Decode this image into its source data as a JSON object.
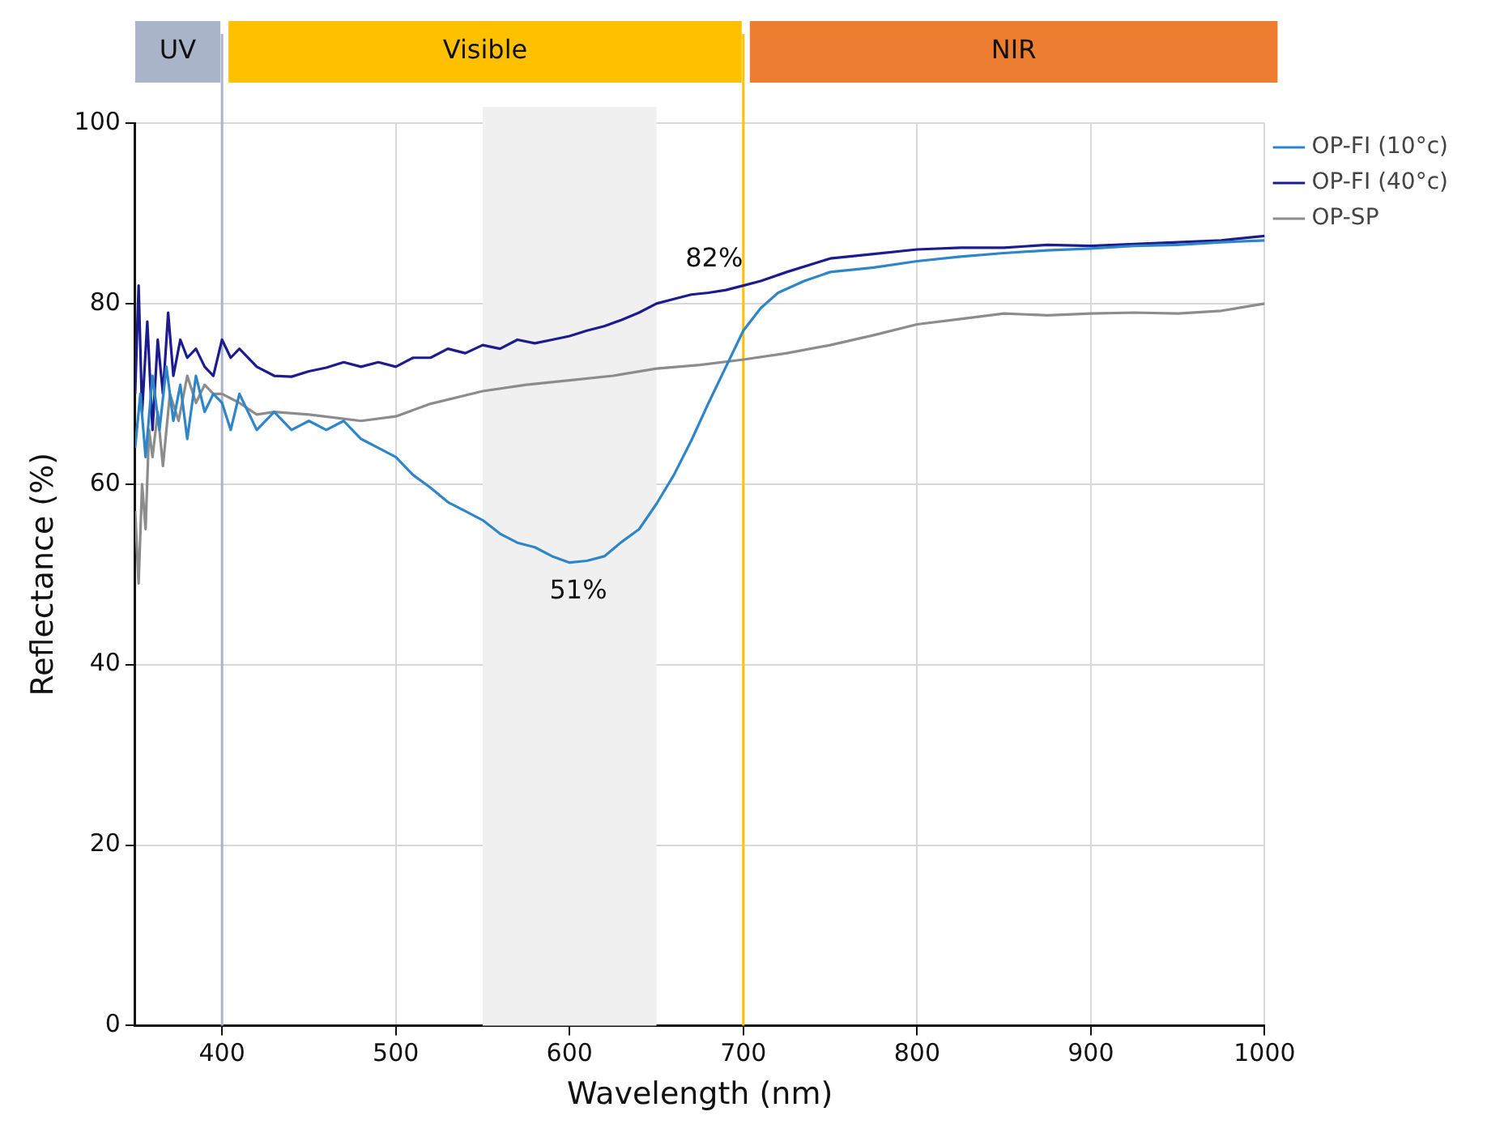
{
  "chart_data": {
    "type": "line",
    "xlabel": "Wavelength (nm)",
    "ylabel": "Reflectance (%)",
    "xlim": [
      350,
      1000
    ],
    "xticks": [
      400,
      500,
      600,
      700,
      800,
      900,
      1000
    ],
    "ylim": [
      0,
      100
    ],
    "yticks": [
      0,
      20,
      40,
      60,
      80,
      100
    ],
    "grid": true,
    "legend": "top right",
    "marker": "none",
    "line_style": "solid",
    "series": [
      {
        "name": "OP-FI (10°c)",
        "color": "#2e86c8",
        "x": [
          350,
          353,
          356,
          360,
          364,
          368,
          372,
          376,
          380,
          385,
          390,
          395,
          400,
          405,
          410,
          420,
          430,
          440,
          450,
          460,
          470,
          480,
          490,
          500,
          510,
          520,
          530,
          540,
          550,
          560,
          570,
          580,
          590,
          600,
          610,
          620,
          630,
          640,
          650,
          660,
          670,
          680,
          690,
          700,
          710,
          720,
          735,
          750,
          775,
          800,
          825,
          850,
          875,
          900,
          925,
          950,
          975,
          1000
        ],
        "values": [
          64,
          70,
          63,
          72,
          66,
          73,
          67,
          71,
          65,
          72,
          68,
          70,
          69,
          66,
          70,
          66,
          68,
          66,
          67,
          66,
          67,
          65,
          64,
          63,
          61,
          59.6,
          58,
          57,
          56,
          54.5,
          53.5,
          53,
          52,
          51.3,
          51.5,
          52,
          53.6,
          55,
          57.8,
          61,
          64.8,
          69,
          73,
          77,
          79.5,
          81.2,
          82.5,
          83.5,
          84,
          84.7,
          85.2,
          85.6,
          85.9,
          86.1,
          86.4,
          86.5,
          86.8,
          87
        ]
      },
      {
        "name": "OP-FI (40°c)",
        "color": "#1c1c8f",
        "x": [
          350,
          352,
          354,
          357,
          360,
          363,
          366,
          369,
          372,
          376,
          380,
          385,
          390,
          395,
          400,
          405,
          410,
          420,
          430,
          440,
          450,
          460,
          470,
          480,
          490,
          500,
          510,
          520,
          530,
          540,
          550,
          560,
          570,
          580,
          590,
          600,
          610,
          620,
          630,
          640,
          650,
          660,
          670,
          680,
          690,
          700,
          710,
          725,
          750,
          775,
          800,
          825,
          850,
          875,
          900,
          925,
          950,
          975,
          1000
        ],
        "values": [
          70,
          82,
          68,
          78,
          66,
          76,
          70,
          79,
          72,
          76,
          74,
          75,
          73,
          72,
          76,
          74,
          75,
          73,
          72,
          71.9,
          72.5,
          72.9,
          73.5,
          73,
          73.5,
          73,
          74,
          74,
          75,
          74.5,
          75.4,
          75,
          76,
          75.6,
          76,
          76.4,
          77,
          77.5,
          78.2,
          79,
          80,
          80.5,
          81,
          81.2,
          81.5,
          82,
          82.5,
          83.5,
          85,
          85.5,
          86,
          86.2,
          86.2,
          86.5,
          86.4,
          86.6,
          86.8,
          87,
          87.5
        ]
      },
      {
        "name": "OP-SP",
        "color": "#8c8c8c",
        "x": [
          350,
          352,
          354,
          356,
          358,
          360,
          363,
          366,
          370,
          375,
          380,
          385,
          390,
          395,
          400,
          410,
          420,
          430,
          450,
          480,
          500,
          520,
          550,
          575,
          600,
          625,
          650,
          675,
          700,
          725,
          750,
          775,
          800,
          825,
          850,
          875,
          900,
          925,
          950,
          975,
          1000
        ],
        "values": [
          57,
          49,
          60,
          55,
          66,
          63,
          68,
          62,
          70,
          67,
          72,
          69,
          71,
          70,
          70,
          69,
          67.7,
          68,
          67.7,
          67,
          67.5,
          68.9,
          70.3,
          71,
          71.5,
          72,
          72.8,
          73.2,
          73.8,
          74.5,
          75.4,
          76.5,
          77.7,
          78.3,
          78.9,
          78.7,
          78.9,
          79,
          78.9,
          79.2,
          80
        ]
      }
    ],
    "ref_lines": [
      {
        "axis": "x",
        "value": 400,
        "color": "#a9b4c8"
      },
      {
        "axis": "x",
        "value": 700,
        "color": "#ffc000"
      }
    ],
    "bands": [
      {
        "axis": "x",
        "from": 550,
        "to": 650,
        "color": "#f0f0f0"
      }
    ],
    "annotations": [
      "UV",
      "Visible",
      "NIR",
      {
        "text": "82%",
        "x": 700,
        "y": 82
      },
      {
        "text": "51%",
        "x": 605,
        "y": 51.3
      }
    ]
  }
}
